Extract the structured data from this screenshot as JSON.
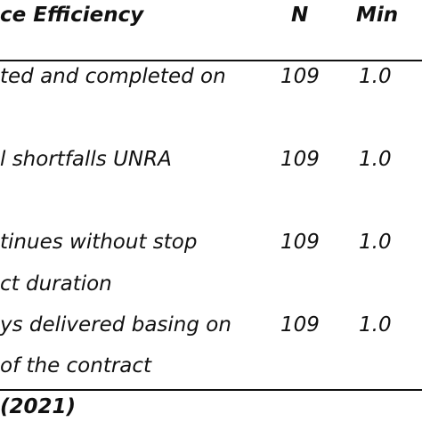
{
  "table": {
    "header": {
      "col1": "ce Efficiency",
      "col_n": "N",
      "col_min": "Min"
    },
    "rows": [
      {
        "line1": "ted and completed on",
        "line2": "",
        "n": "109",
        "min": "1.0"
      },
      {
        "line1": "l shortfalls UNRA",
        "line2": "",
        "n": "109",
        "min": "1.0"
      },
      {
        "line1": "tinues without stop",
        "line2": "ct duration",
        "n": "109",
        "min": "1.0"
      },
      {
        "line1": "ys delivered basing on",
        "line2": " of the contract",
        "n": "109",
        "min": "1.0"
      }
    ],
    "source": "(2021)"
  }
}
